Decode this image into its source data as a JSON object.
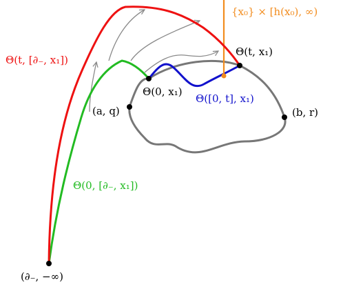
{
  "labels": {
    "theta_t_interval": "Θ(t, [∂₋, x₁])",
    "theta_t_x1": "Θ(t, x₁)",
    "ray": "{x₀} × [h(x₀), ∞)",
    "theta_0_x1": "Θ(0, x₁)",
    "theta_interval_x1": "Θ([0, t], x₁)",
    "point_a_q": "(a, q)",
    "point_b_r": "(b, r)",
    "theta_0_interval": "Θ(0, [∂₋, x₁])",
    "bottom_point": "(∂₋, −∞)"
  },
  "colors": {
    "red_curve": "#ee1111",
    "green_curve": "#22bb22",
    "blue_curve": "#1111cc",
    "orange_ray": "#f28c1e",
    "gray_loop": "#777777",
    "arrow": "#8a8a8a",
    "point": "#000000"
  }
}
